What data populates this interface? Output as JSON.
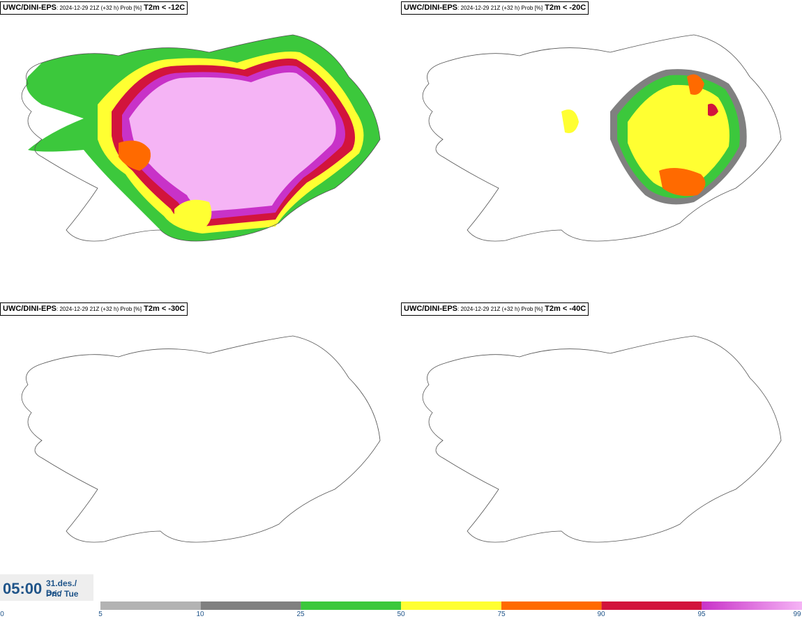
{
  "panels": [
    {
      "source": "UWC/DINI-EPS",
      "meta": ": 2024-12-29 21Z (+32 h) Prob [%]",
      "variable": "T2m < -12C"
    },
    {
      "source": "UWC/DINI-EPS",
      "meta": ": 2024-12-29 21Z (+32 h) Prob [%]",
      "variable": "T2m < -20C"
    },
    {
      "source": "UWC/DINI-EPS",
      "meta": ": 2024-12-29 21Z (+32 h) Prob [%]",
      "variable": "T2m < -30C"
    },
    {
      "source": "UWC/DINI-EPS",
      "meta": ": 2024-12-29 21Z (+32 h) Prob [%]",
      "variable": "T2m < -40C"
    }
  ],
  "valid_time": {
    "time": "05:00",
    "date_line1": "31.des./ Dec",
    "date_line2": "Þri./ Tue"
  },
  "colorbar": {
    "ticks": [
      "0",
      "5",
      "10",
      "25",
      "50",
      "75",
      "90",
      "95",
      "99"
    ],
    "colors": [
      "#b3b3b3",
      "#808080",
      "#3cc83c",
      "#ffff32",
      "#ff6a00",
      "#d2143c",
      "#c832c8",
      "#f5b4f5"
    ]
  }
}
